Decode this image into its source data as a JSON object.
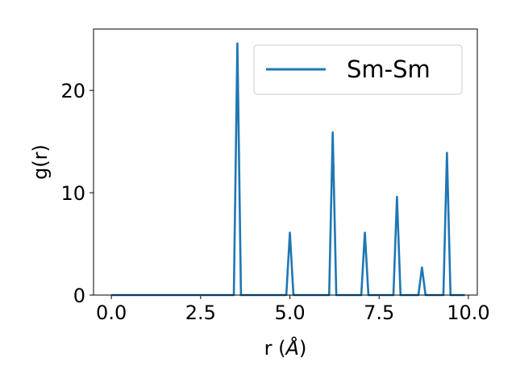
{
  "chart_data": {
    "type": "line",
    "title": "",
    "xlabel_main": "r (",
    "xlabel_symbol": "Å",
    "xlabel_close": ")",
    "ylabel": "g(r)",
    "xlim": [
      -0.5,
      10.25
    ],
    "ylim": [
      0,
      26
    ],
    "xticks": [
      0.0,
      2.5,
      5.0,
      7.5,
      10.0
    ],
    "xtick_labels": [
      "0.0",
      "2.5",
      "5.0",
      "7.5",
      "10.0"
    ],
    "yticks": [
      0,
      10,
      20
    ],
    "ytick_labels": [
      "0",
      "10",
      "20"
    ],
    "grid": false,
    "legend_position": "top-right",
    "series": [
      {
        "name": "Sm-Sm",
        "color": "#1f77b4",
        "x": [
          0.0,
          3.43,
          3.53,
          3.63,
          4.9,
          5.0,
          5.1,
          6.1,
          6.2,
          6.3,
          7.0,
          7.1,
          7.2,
          7.9,
          8.0,
          8.1,
          8.6,
          8.7,
          8.8,
          9.3,
          9.4,
          9.5,
          9.9
        ],
        "values": [
          0,
          0,
          24.6,
          0,
          0,
          6.1,
          0,
          0,
          15.9,
          0,
          0,
          6.1,
          0,
          0,
          9.6,
          0,
          0,
          2.7,
          0,
          0,
          13.9,
          0,
          0
        ]
      }
    ]
  }
}
